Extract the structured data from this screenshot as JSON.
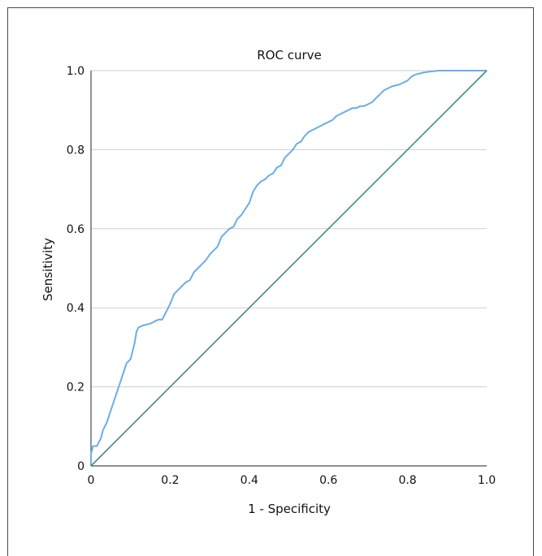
{
  "chart_data": {
    "type": "line",
    "title": "ROC curve",
    "xlabel": "1 - Specificity",
    "ylabel": "Sensitivity",
    "xlim": [
      0,
      1
    ],
    "ylim": [
      0,
      1
    ],
    "x_ticks": [
      "0",
      "0.2",
      "0.4",
      "0.6",
      "0.8",
      "1.0"
    ],
    "y_ticks": [
      "0",
      "0.2",
      "0.4",
      "0.6",
      "0.8",
      "1.0"
    ],
    "grid": "horizontal",
    "colors": {
      "curve": "#6aaee8",
      "reference": "#3f8f7e",
      "grid": "#cfcfcf",
      "axis": "#4a4a4a"
    },
    "series": [
      {
        "points": [
          [
            0,
            0
          ],
          [
            0,
            0.03
          ],
          [
            0.005,
            0.05
          ],
          [
            0.015,
            0.05
          ],
          [
            0.02,
            0.06
          ],
          [
            0.025,
            0.07
          ],
          [
            0.03,
            0.09
          ],
          [
            0.04,
            0.11
          ],
          [
            0.05,
            0.14
          ],
          [
            0.06,
            0.17
          ],
          [
            0.07,
            0.2
          ],
          [
            0.08,
            0.23
          ],
          [
            0.09,
            0.26
          ],
          [
            0.1,
            0.27
          ],
          [
            0.11,
            0.31
          ],
          [
            0.115,
            0.34
          ],
          [
            0.12,
            0.35
          ],
          [
            0.13,
            0.355
          ],
          [
            0.15,
            0.36
          ],
          [
            0.16,
            0.365
          ],
          [
            0.17,
            0.37
          ],
          [
            0.18,
            0.37
          ],
          [
            0.19,
            0.39
          ],
          [
            0.2,
            0.41
          ],
          [
            0.21,
            0.435
          ],
          [
            0.22,
            0.445
          ],
          [
            0.23,
            0.455
          ],
          [
            0.24,
            0.465
          ],
          [
            0.25,
            0.47
          ],
          [
            0.26,
            0.49
          ],
          [
            0.27,
            0.5
          ],
          [
            0.28,
            0.51
          ],
          [
            0.29,
            0.52
          ],
          [
            0.3,
            0.535
          ],
          [
            0.31,
            0.545
          ],
          [
            0.32,
            0.555
          ],
          [
            0.33,
            0.58
          ],
          [
            0.34,
            0.59
          ],
          [
            0.35,
            0.6
          ],
          [
            0.36,
            0.605
          ],
          [
            0.37,
            0.625
          ],
          [
            0.38,
            0.635
          ],
          [
            0.39,
            0.65
          ],
          [
            0.4,
            0.665
          ],
          [
            0.41,
            0.695
          ],
          [
            0.42,
            0.71
          ],
          [
            0.43,
            0.72
          ],
          [
            0.44,
            0.725
          ],
          [
            0.45,
            0.735
          ],
          [
            0.46,
            0.74
          ],
          [
            0.47,
            0.755
          ],
          [
            0.48,
            0.76
          ],
          [
            0.49,
            0.78
          ],
          [
            0.5,
            0.79
          ],
          [
            0.51,
            0.8
          ],
          [
            0.52,
            0.815
          ],
          [
            0.53,
            0.82
          ],
          [
            0.54,
            0.835
          ],
          [
            0.55,
            0.845
          ],
          [
            0.56,
            0.85
          ],
          [
            0.57,
            0.855
          ],
          [
            0.58,
            0.86
          ],
          [
            0.59,
            0.865
          ],
          [
            0.6,
            0.87
          ],
          [
            0.61,
            0.875
          ],
          [
            0.62,
            0.885
          ],
          [
            0.63,
            0.89
          ],
          [
            0.64,
            0.895
          ],
          [
            0.65,
            0.9
          ],
          [
            0.66,
            0.905
          ],
          [
            0.67,
            0.905
          ],
          [
            0.68,
            0.91
          ],
          [
            0.69,
            0.91
          ],
          [
            0.7,
            0.915
          ],
          [
            0.71,
            0.92
          ],
          [
            0.72,
            0.93
          ],
          [
            0.73,
            0.94
          ],
          [
            0.74,
            0.95
          ],
          [
            0.75,
            0.955
          ],
          [
            0.76,
            0.96
          ],
          [
            0.78,
            0.965
          ],
          [
            0.79,
            0.97
          ],
          [
            0.8,
            0.975
          ],
          [
            0.81,
            0.985
          ],
          [
            0.82,
            0.99
          ],
          [
            0.84,
            0.995
          ],
          [
            0.86,
            0.998
          ],
          [
            0.88,
            1.0
          ],
          [
            1.0,
            1.0
          ]
        ]
      },
      {
        "points": [
          [
            0,
            0
          ],
          [
            1,
            1
          ]
        ]
      }
    ]
  }
}
